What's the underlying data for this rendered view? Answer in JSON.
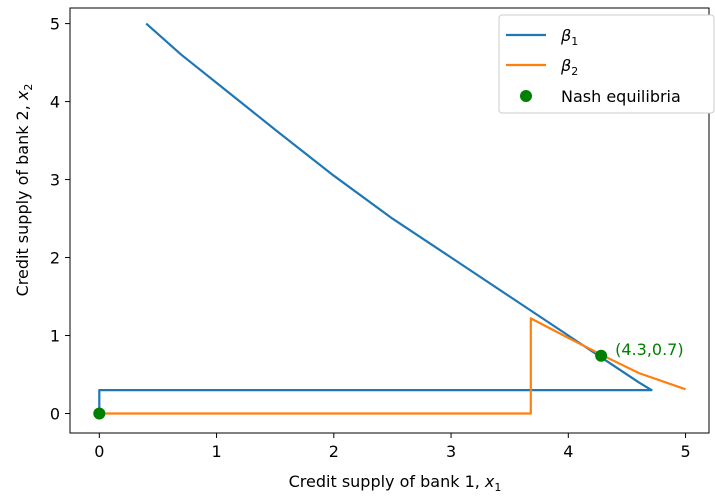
{
  "chart_data": {
    "type": "line",
    "xlabel": "Credit supply of bank 1, ",
    "xlabel_var": "x",
    "xlabel_sub": "1",
    "ylabel": "Credit supply of bank 2, ",
    "ylabel_var": "x",
    "ylabel_sub": "2",
    "xlim": [
      -0.25,
      5.2
    ],
    "ylim": [
      -0.25,
      5.2
    ],
    "xticks": [
      0,
      1,
      2,
      3,
      4,
      5
    ],
    "yticks": [
      0,
      1,
      2,
      3,
      4,
      5
    ],
    "grid": false,
    "legend_position": "top-right",
    "series": [
      {
        "name": "β",
        "name_sub": "1",
        "color": "#1f77b4",
        "x": [
          0.0,
          0.0,
          4.71,
          4.6,
          4.3,
          4.0,
          3.5,
          3.0,
          2.5,
          2.0,
          1.5,
          1.0,
          0.7,
          0.4
        ],
        "y": [
          0.0,
          0.3,
          0.3,
          0.4,
          0.7,
          1.0,
          1.5,
          2.0,
          2.5,
          3.05,
          3.64,
          4.24,
          4.6,
          5.0
        ]
      },
      {
        "name": "β",
        "name_sub": "2",
        "color": "#ff7f0e",
        "x": [
          0.0,
          3.68,
          3.68,
          4.0,
          4.3,
          4.6,
          5.0
        ],
        "y": [
          0.0,
          0.0,
          1.22,
          0.97,
          0.74,
          0.52,
          0.31
        ]
      }
    ],
    "points": {
      "name": "Nash equilibria",
      "color": "#008000",
      "x": [
        0.0,
        4.28
      ],
      "y": [
        0.0,
        0.74
      ]
    },
    "annotation": {
      "text": "(4.3,0.7)",
      "x": 4.28,
      "y": 0.74,
      "color": "#008000"
    }
  }
}
